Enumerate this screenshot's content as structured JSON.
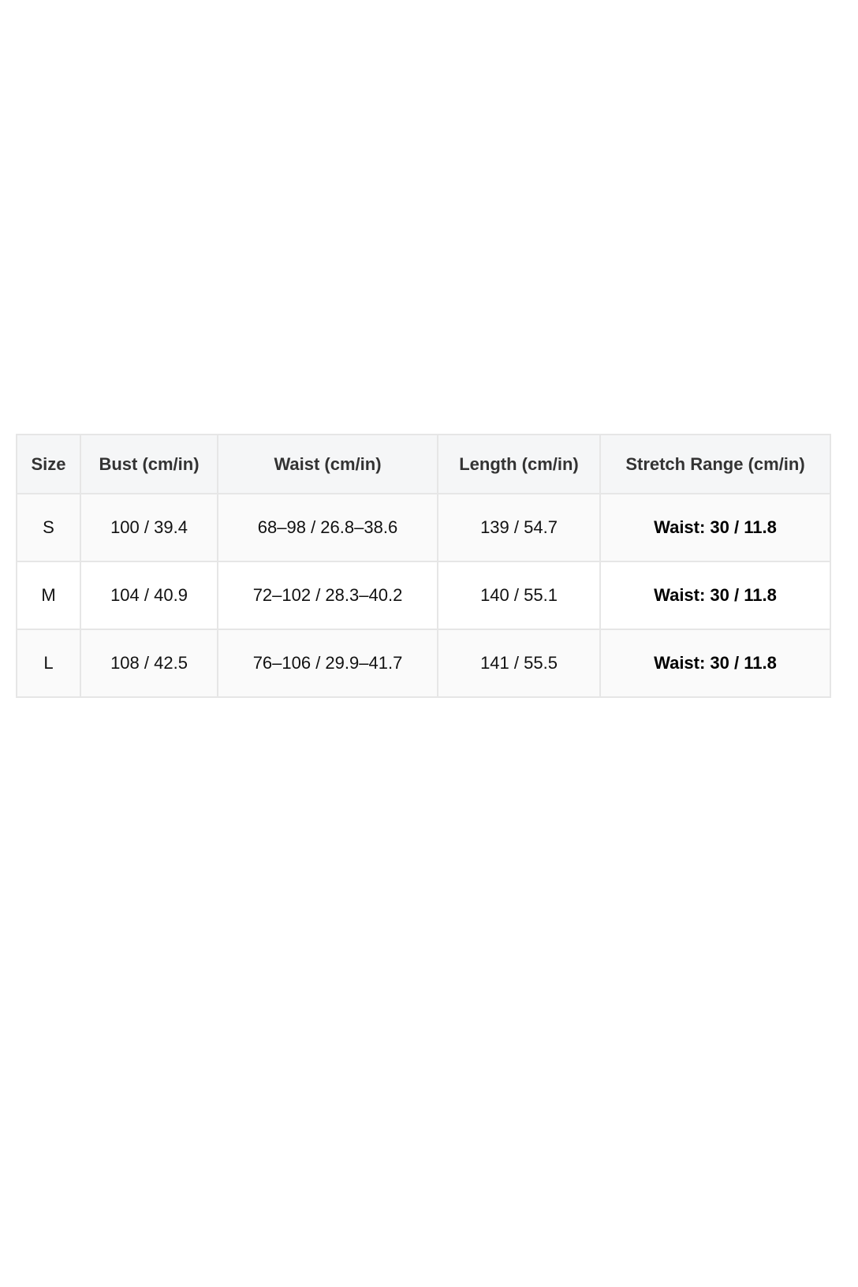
{
  "size_chart": {
    "headers": [
      "Size",
      "Bust (cm/in)",
      "Waist (cm/in)",
      "Length (cm/in)",
      "Stretch Range (cm/in)"
    ],
    "rows": [
      [
        "S",
        "100 / 39.4",
        "68–98 / 26.8–38.6",
        "139 / 54.7",
        "Waist: 30 / 11.8"
      ],
      [
        "M",
        "104 / 40.9",
        "72–102 / 28.3–40.2",
        "140 / 55.1",
        "Waist: 30 / 11.8"
      ],
      [
        "L",
        "108 / 42.5",
        "76–106 / 29.9–41.7",
        "141 / 55.5",
        "Waist: 30 / 11.8"
      ]
    ]
  }
}
